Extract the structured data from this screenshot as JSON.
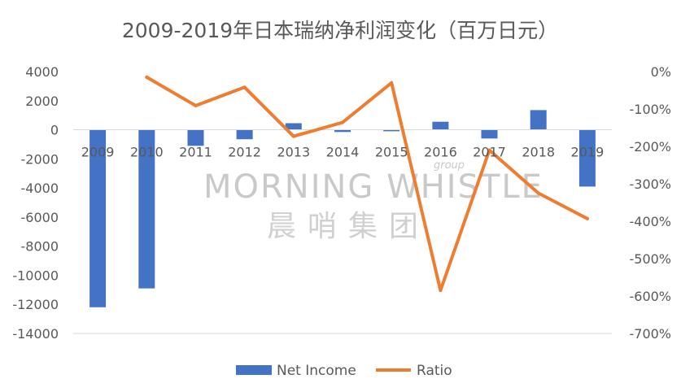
{
  "chart_data": {
    "type": "bar+line",
    "title": "2009-2019年日本瑞纳净利润变化（百万日元）",
    "categories": [
      "2009",
      "2010",
      "2011",
      "2012",
      "2013",
      "2014",
      "2015",
      "2016",
      "2017",
      "2018",
      "2019"
    ],
    "series": [
      {
        "name": "Net Income",
        "type": "bar",
        "axis": "left",
        "color": "#4472C4",
        "values": [
          -12200,
          -10900,
          -1100,
          -650,
          450,
          -150,
          -100,
          550,
          -600,
          1350,
          -3900
        ]
      },
      {
        "name": "Ratio",
        "type": "line",
        "axis": "right",
        "color": "#ED7D31",
        "values": [
          null,
          -15,
          -91,
          -42,
          -173,
          -136,
          -30,
          -585,
          -210,
          -325,
          -393
        ]
      }
    ],
    "y_left": {
      "min": -14000,
      "max": 4000,
      "step": 2000,
      "ticks": [
        "4000",
        "2000",
        "0",
        "-2000",
        "-4000",
        "-6000",
        "-8000",
        "-10000",
        "-12000",
        "-14000"
      ]
    },
    "y_right": {
      "min": -700,
      "max": 0,
      "step": 100,
      "ticks": [
        "0%",
        "-100%",
        "-200%",
        "-300%",
        "-400%",
        "-500%",
        "-600%",
        "-700%"
      ]
    },
    "legend": {
      "position": "bottom"
    },
    "grid": false
  },
  "watermark": {
    "latin": "MORNING WHISTLE",
    "cjk": "晨哨集团",
    "group": "group"
  }
}
